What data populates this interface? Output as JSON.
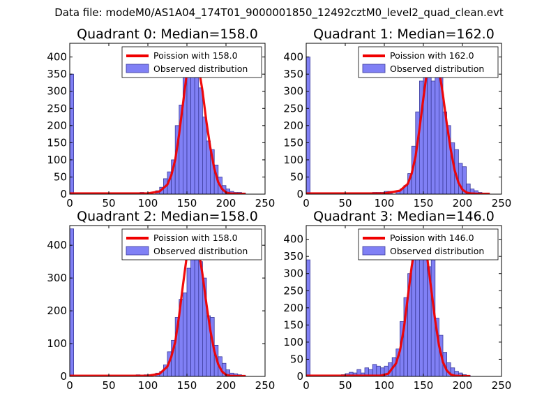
{
  "figure": {
    "suptitle": "Data file: modeM0/AS1A04_174T01_9000001850_12492cztM0_level2_quad_clean.evt",
    "legend_position": "top-right",
    "colors": {
      "hist_fill": "#8080f5",
      "hist_edge": "#3a3a9a",
      "fit_line": "#f00000",
      "axes": "#000000"
    }
  },
  "chart_data": [
    {
      "type": "bar",
      "title": "Quadrant 0: Median=158.0",
      "median": 158.0,
      "legend": [
        "Poission with 158.0",
        "Observed distribution"
      ],
      "xlim": [
        0,
        250
      ],
      "ylim": [
        0,
        440
      ],
      "xticks": [
        0,
        50,
        100,
        150,
        200,
        250
      ],
      "yticks": [
        0,
        50,
        100,
        150,
        200,
        250,
        300,
        350,
        400
      ],
      "bin_width": 5,
      "bin_starts": [
        0,
        90,
        110,
        115,
        120,
        125,
        130,
        135,
        140,
        145,
        150,
        155,
        160,
        165,
        170,
        175,
        180,
        185,
        190,
        195,
        200,
        205,
        210,
        215,
        220
      ],
      "counts": [
        350,
        5,
        10,
        20,
        45,
        65,
        100,
        200,
        260,
        350,
        380,
        420,
        340,
        310,
        225,
        155,
        130,
        85,
        50,
        25,
        15,
        8,
        5,
        5,
        3
      ],
      "fit_curve": {
        "x": [
          0,
          100,
          115,
          125,
          130,
          135,
          140,
          145,
          150,
          155,
          158,
          160,
          165,
          170,
          175,
          180,
          185,
          190,
          195,
          200,
          205,
          215,
          225
        ],
        "y": [
          2,
          2,
          8,
          28,
          55,
          100,
          175,
          265,
          355,
          410,
          420,
          415,
          370,
          300,
          210,
          135,
          75,
          35,
          15,
          5,
          2,
          1,
          1
        ]
      }
    },
    {
      "type": "bar",
      "title": "Quadrant 1: Median=162.0",
      "median": 162.0,
      "legend": [
        "Poission with 162.0",
        "Observed distribution"
      ],
      "xlim": [
        0,
        250
      ],
      "ylim": [
        0,
        440
      ],
      "xticks": [
        0,
        50,
        100,
        150,
        200,
        250
      ],
      "yticks": [
        0,
        50,
        100,
        150,
        200,
        250,
        300,
        350,
        400
      ],
      "bin_width": 5,
      "bin_starts": [
        0,
        85,
        90,
        95,
        100,
        105,
        115,
        120,
        125,
        130,
        135,
        140,
        145,
        150,
        155,
        160,
        165,
        170,
        175,
        180,
        185,
        190,
        195,
        200,
        205,
        210,
        215,
        220
      ],
      "counts": [
        400,
        5,
        5,
        5,
        8,
        8,
        10,
        15,
        25,
        60,
        140,
        240,
        330,
        400,
        380,
        330,
        400,
        350,
        240,
        200,
        150,
        130,
        90,
        80,
        30,
        15,
        10,
        5
      ],
      "fit_curve": {
        "x": [
          0,
          100,
          120,
          130,
          135,
          140,
          145,
          150,
          155,
          160,
          162,
          165,
          170,
          175,
          180,
          185,
          190,
          195,
          200,
          205,
          210,
          220,
          235
        ],
        "y": [
          2,
          2,
          10,
          30,
          60,
          110,
          190,
          280,
          365,
          415,
          422,
          410,
          365,
          290,
          205,
          130,
          70,
          33,
          13,
          5,
          2,
          1,
          1
        ]
      }
    },
    {
      "type": "bar",
      "title": "Quadrant 2: Median=158.0",
      "median": 158.0,
      "legend": [
        "Poission with 158.0",
        "Observed distribution"
      ],
      "xlim": [
        0,
        250
      ],
      "ylim": [
        0,
        460
      ],
      "xticks": [
        0,
        50,
        100,
        150,
        200,
        250
      ],
      "yticks": [
        0,
        100,
        200,
        300,
        400
      ],
      "bin_width": 5,
      "bin_starts": [
        0,
        85,
        95,
        100,
        110,
        115,
        120,
        125,
        130,
        135,
        140,
        145,
        150,
        155,
        160,
        165,
        170,
        175,
        180,
        185,
        190,
        195,
        200,
        205,
        210,
        215,
        220
      ],
      "counts": [
        450,
        5,
        5,
        5,
        10,
        15,
        35,
        75,
        110,
        180,
        235,
        255,
        330,
        410,
        420,
        350,
        300,
        185,
        180,
        95,
        60,
        40,
        20,
        10,
        8,
        5,
        3
      ],
      "fit_curve": {
        "x": [
          0,
          100,
          115,
          125,
          130,
          135,
          140,
          145,
          150,
          155,
          158,
          160,
          165,
          170,
          175,
          180,
          185,
          190,
          195,
          200,
          205,
          215,
          225
        ],
        "y": [
          2,
          2,
          8,
          30,
          60,
          105,
          185,
          280,
          370,
          425,
          435,
          430,
          385,
          310,
          220,
          140,
          78,
          37,
          15,
          5,
          2,
          1,
          1
        ]
      }
    },
    {
      "type": "bar",
      "title": "Quadrant 3: Median=146.0",
      "median": 146.0,
      "legend": [
        "Poission with 146.0",
        "Observed distribution"
      ],
      "xlim": [
        0,
        250
      ],
      "ylim": [
        0,
        440
      ],
      "xticks": [
        0,
        50,
        100,
        150,
        200,
        250
      ],
      "yticks": [
        0,
        50,
        100,
        150,
        200,
        250,
        300,
        350,
        400
      ],
      "bin_width": 5,
      "bin_starts": [
        0,
        45,
        50,
        55,
        60,
        65,
        70,
        75,
        80,
        85,
        90,
        95,
        100,
        105,
        110,
        115,
        120,
        125,
        130,
        135,
        140,
        145,
        150,
        155,
        160,
        165,
        170,
        175,
        180,
        185,
        190,
        195,
        200,
        205
      ],
      "counts": [
        340,
        5,
        8,
        12,
        10,
        20,
        10,
        25,
        20,
        35,
        30,
        25,
        30,
        40,
        55,
        80,
        160,
        230,
        300,
        360,
        370,
        410,
        380,
        320,
        340,
        170,
        120,
        70,
        40,
        25,
        15,
        10,
        5,
        3
      ],
      "fit_curve": {
        "x": [
          0,
          95,
          105,
          115,
          120,
          125,
          130,
          135,
          140,
          145,
          146,
          150,
          155,
          160,
          165,
          170,
          175,
          180,
          185,
          190,
          200,
          210
        ],
        "y": [
          2,
          2,
          8,
          38,
          75,
          140,
          230,
          320,
          390,
          418,
          420,
          405,
          345,
          255,
          165,
          90,
          42,
          17,
          6,
          2,
          1,
          1
        ]
      }
    }
  ]
}
